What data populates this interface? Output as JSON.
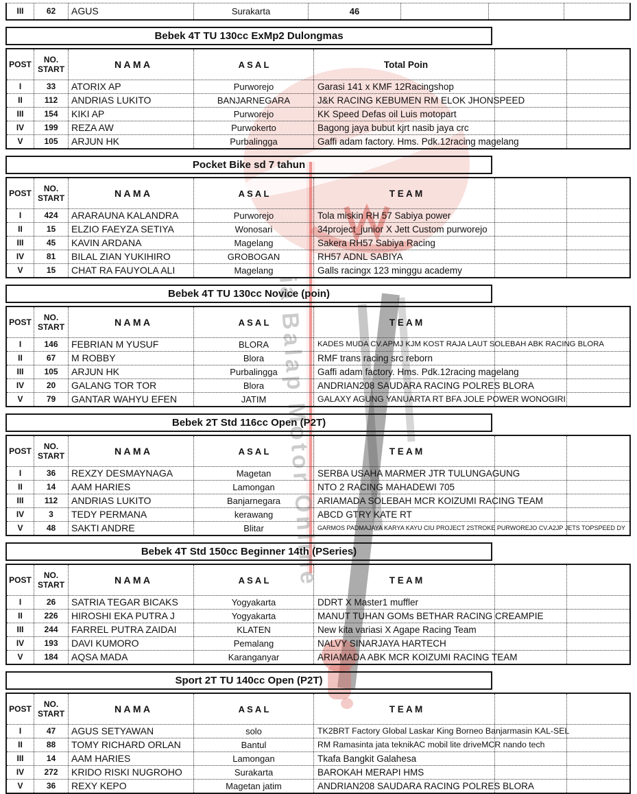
{
  "watermark": {
    "text": "ia Balap Motor Online",
    "pink": "#efb6ae",
    "accent_red": "#d9534c",
    "gray": "#8f8f8f"
  },
  "columns": {
    "pos": "POST",
    "no_line1": "NO.",
    "no_line2": "START",
    "nama": "N A M A",
    "asal": "A S A L"
  },
  "top_table": {
    "row": {
      "pos": "III",
      "no": "62",
      "nama": "AGUS",
      "asal": "Surakarta",
      "poin": "46"
    }
  },
  "sections": [
    {
      "title": "Bebek 4T TU 130cc ExMp2 Dulongmas",
      "value_header": "Total Poin",
      "rows": [
        {
          "pos": "I",
          "no": "33",
          "nama": "ATORIX AP",
          "asal": "Purworejo",
          "team": "Garasi 141 x KMF 12Racingshop"
        },
        {
          "pos": "II",
          "no": "112",
          "nama": "ANDRIAS LUKITO",
          "asal": "BANJARNEGARA",
          "team": "J&K RACING KEBUMEN RM ELOK JHONSPEED"
        },
        {
          "pos": "III",
          "no": "154",
          "nama": "KIKI AP",
          "asal": "Purworejo",
          "team": "KK Speed Defas oil Luis motopart"
        },
        {
          "pos": "IV",
          "no": "199",
          "nama": "REZA AW",
          "asal": "Purwokerto",
          "team": "Bagong jaya bubut kjrt nasib jaya crc"
        },
        {
          "pos": "V",
          "no": "105",
          "nama": "ARJUN HK",
          "asal": "Purbalingga",
          "team": "Gaffi adam factory. Hms. Pdk.12racing magelang"
        }
      ]
    },
    {
      "title": "Pocket Bike sd 7 tahun",
      "value_header": "T E A M",
      "rows": [
        {
          "pos": "I",
          "no": "424",
          "nama": "ARARAUNA KALANDRA",
          "asal": "Purworejo",
          "team": "Tola miskin RH 57 Sabiya power"
        },
        {
          "pos": "II",
          "no": "15",
          "nama": "ELZIO FAEYZA SETIYA",
          "asal": "Wonosari",
          "team": "34project_junior X Jett Custom purworejo"
        },
        {
          "pos": "III",
          "no": "45",
          "nama": "KAVIN ARDANA",
          "asal": "Magelang",
          "team": "Sakera RH57 Sabiya Racing"
        },
        {
          "pos": "IV",
          "no": "81",
          "nama": "BILAL ZIAN YUKIHIRO",
          "asal": "GROBOGAN",
          "team": "RH57 ADNL SABIYA"
        },
        {
          "pos": "V",
          "no": "15",
          "nama": "CHAT RA FAUYOLA ALI",
          "asal": "Magelang",
          "team": "Galls racingx 123 minggu academy"
        }
      ]
    },
    {
      "title": "Bebek 4T TU 130cc Novice (poin)",
      "value_header": "T E A M",
      "rows": [
        {
          "pos": "I",
          "no": "146",
          "nama": "FEBRIAN M YUSUF",
          "asal": "BLORA",
          "team": "KADES MUDA CV.APMJ KJM KOST RAJA LAUT SOLEBAH ABK RACING BLORA",
          "sz": "xs"
        },
        {
          "pos": "II",
          "no": "67",
          "nama": "M ROBBY",
          "asal": "Blora",
          "team": "RMF trans racing src reborn"
        },
        {
          "pos": "III",
          "no": "105",
          "nama": "ARJUN HK",
          "asal": "Purbalingga",
          "team": "Gaffi adam factory. Hms. Pdk.12racing magelang"
        },
        {
          "pos": "IV",
          "no": "20",
          "nama": "GALANG TOR TOR",
          "asal": "Blora",
          "team": "ANDRIAN208 SAUDARA RACING POLRES BLORA"
        },
        {
          "pos": "V",
          "no": "79",
          "nama": "GANTAR WAHYU EFEN",
          "asal": "JATIM",
          "team": "GALAXY AGUNG YANUARTA RT BFA JOLE POWER WONOGIRI",
          "sz": "s"
        }
      ]
    },
    {
      "title": "Bebek 2T Std 116cc Open (P2T)",
      "value_header": "T E A M",
      "rows": [
        {
          "pos": "I",
          "no": "36",
          "nama": "REXZY DESMAYNAGA",
          "asal": "Magetan",
          "team": "SERBA USAHA MARMER JTR TULUNGAGUNG"
        },
        {
          "pos": "II",
          "no": "14",
          "nama": "AAM HARIES",
          "asal": "Lamongan",
          "team": "NTO 2 RACING MAHADEWI 705"
        },
        {
          "pos": "III",
          "no": "112",
          "nama": "ANDRIAS LUKITO",
          "asal": "Banjarnegara",
          "team": "ARIAMADA SOLEBAH MCR KOIZUMI RACING TEAM"
        },
        {
          "pos": "IV",
          "no": "3",
          "nama": "TEDY PERMANA",
          "asal": "kerawang",
          "team": "ABCD GTRY KATE RT"
        },
        {
          "pos": "V",
          "no": "48",
          "nama": "SAKTI ANDRE",
          "asal": "Blitar",
          "team": "GARMOS PADMAJAYA KARYA KAYU CIU PROJECT 2STROKE PURWOREJO CV.A2JP JETS TOPSPEED DY",
          "sz": "xxs"
        }
      ]
    },
    {
      "title": "Bebek 4T Std 150cc Beginner 14th (PSeries)",
      "value_header": "T E A M",
      "rows": [
        {
          "pos": "I",
          "no": "26",
          "nama": "SATRIA TEGAR BICAKS",
          "asal": "Yogyakarta",
          "team": "DDRT X Master1 muffler"
        },
        {
          "pos": "II",
          "no": "226",
          "nama": "HIROSHI EKA PUTRA J",
          "asal": "Yogyakarta",
          "team": "MANUT TUHAN GOMs BETHAR RACING CREAMPIE"
        },
        {
          "pos": "III",
          "no": "244",
          "nama": "FARREL PUTRA ZAIDAI",
          "asal": "KLATEN",
          "team": "New kita variasi X Agape Racing Team"
        },
        {
          "pos": "IV",
          "no": "193",
          "nama": "DAVI KUMORO",
          "asal": "Pemalang",
          "team": "NALVY SINARJAYA HARTECH"
        },
        {
          "pos": "V",
          "no": "184",
          "nama": "AQSA MADA",
          "asal": "Karanganyar",
          "team": "ARIAMADA ABK MCR KOIZUMI RACING TEAM"
        }
      ]
    },
    {
      "title": "Sport 2T TU 140cc Open (P2T)",
      "value_header": "T E A M",
      "rows": [
        {
          "pos": "I",
          "no": "47",
          "nama": "AGUS SETYAWAN",
          "asal": "solo",
          "team": "TK2BRT Factory Global Laskar King Borneo Banjarmasin KAL-SEL",
          "sz": "s"
        },
        {
          "pos": "II",
          "no": "88",
          "nama": "TOMY RICHARD ORLAN",
          "asal": "Bantul",
          "team": "RM Ramasinta jata teknikAC mobil lite driveMCR nando tech",
          "sz": "s"
        },
        {
          "pos": "III",
          "no": "14",
          "nama": "AAM HARIES",
          "asal": "Lamongan",
          "team": "Tkafa Bangkit Galahesa"
        },
        {
          "pos": "IV",
          "no": "272",
          "nama": "KRIDO RISKI NUGROHO",
          "asal": "Surakarta",
          "team": "BAROKAH MERAPI HMS"
        },
        {
          "pos": "V",
          "no": "36",
          "nama": "REXY KEPO",
          "asal": "Magetan jatim",
          "team": "ANDRIAN208 SAUDARA RACING POLRES BLORA"
        }
      ]
    }
  ]
}
